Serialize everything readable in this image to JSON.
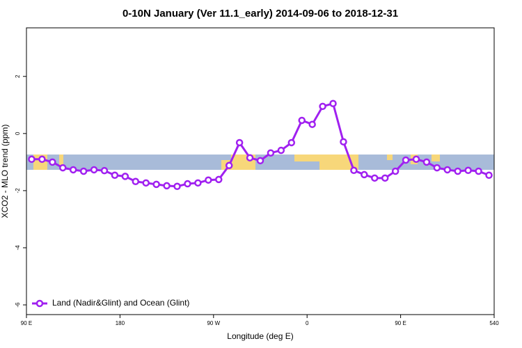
{
  "chart_data": {
    "type": "line",
    "title": "0-10N January (Ver 11.1_early)   2014-09-06 to 2018-12-31",
    "x_label": "Longitude (deg E)",
    "y_label": "XCO2 - MLO trend (ppm)",
    "x": [
      95,
      105,
      115,
      125,
      135,
      145,
      155,
      165,
      175,
      185,
      195,
      205,
      215,
      225,
      235,
      245,
      255,
      265,
      275,
      285,
      295,
      305,
      315,
      325,
      335,
      345,
      355,
      365,
      375,
      385,
      395,
      405,
      415,
      425,
      435,
      445,
      455,
      465,
      475,
      485,
      495,
      505,
      515,
      525,
      535
    ],
    "series": [
      {
        "name": "Land (Nadir&Glint) and Ocean (Glint)",
        "color": "#a020f0",
        "values": [
          -0.9,
          -0.9,
          -1.0,
          -1.2,
          -1.27,
          -1.32,
          -1.27,
          -1.3,
          -1.46,
          -1.5,
          -1.68,
          -1.73,
          -1.78,
          -1.83,
          -1.85,
          -1.76,
          -1.73,
          -1.63,
          -1.61,
          -1.12,
          -0.32,
          -0.85,
          -0.95,
          -0.68,
          -0.59,
          -0.32,
          0.46,
          0.32,
          0.95,
          1.05,
          -0.29,
          -1.29,
          -1.44,
          -1.56,
          -1.56,
          -1.32,
          -0.93,
          -0.9,
          -1.0,
          -1.2,
          -1.27,
          -1.32,
          -1.29,
          -1.32,
          -1.46
        ]
      }
    ],
    "xlim": [
      90,
      540
    ],
    "ylim": [
      -6.34,
      3.7
    ],
    "xticks": [
      {
        "value": 90,
        "label": "90 E"
      },
      180,
      {
        "value": 270,
        "label": "90 W"
      },
      {
        "value": 360,
        "label": "0"
      },
      {
        "value": 450,
        "label": "90 E"
      },
      540
    ],
    "yticks": [
      -6,
      -4,
      -2,
      0,
      2
    ],
    "legend": "bottom-left"
  }
}
